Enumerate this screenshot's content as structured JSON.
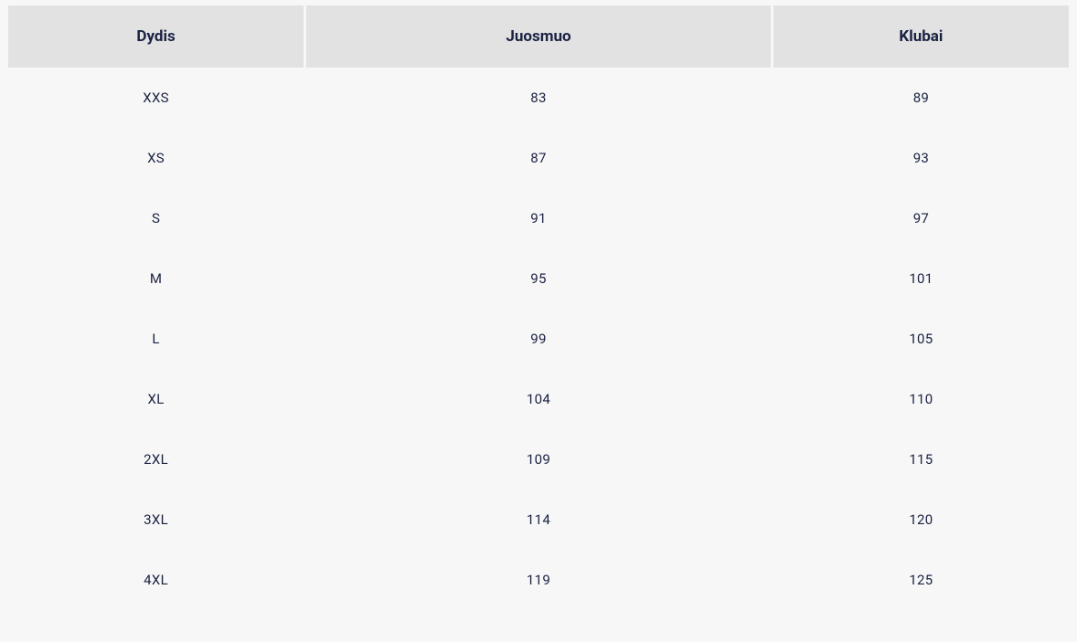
{
  "table": {
    "type": "table",
    "background_color": "#f7f7f7",
    "header_background_color": "#e2e2e2",
    "text_color": "#1a2242",
    "header_font_weight": 700,
    "header_font_size": 17,
    "body_font_size": 15,
    "column_widths_pct": [
      28,
      44,
      28
    ],
    "columns": [
      "Dydis",
      "Juosmuo",
      "Klubai"
    ],
    "rows": [
      [
        "XXS",
        "83",
        "89"
      ],
      [
        "XS",
        "87",
        "93"
      ],
      [
        "S",
        "91",
        "97"
      ],
      [
        "M",
        "95",
        "101"
      ],
      [
        "L",
        "99",
        "105"
      ],
      [
        "XL",
        "104",
        "110"
      ],
      [
        "2XL",
        "109",
        "115"
      ],
      [
        "3XL",
        "114",
        "120"
      ],
      [
        "4XL",
        "119",
        "125"
      ]
    ]
  }
}
